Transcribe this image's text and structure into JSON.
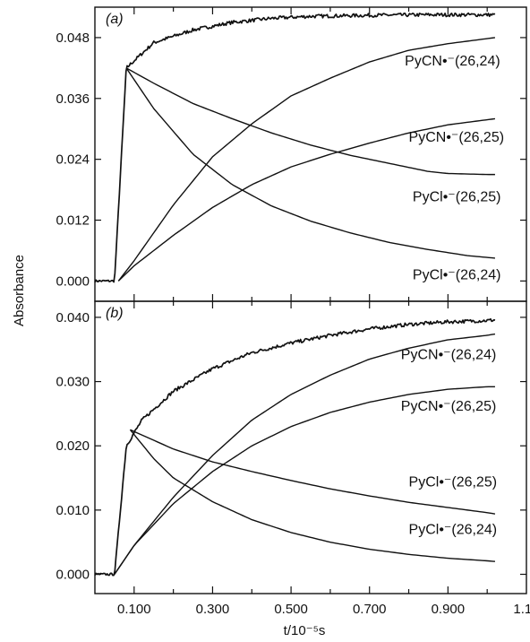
{
  "chart_data": [
    {
      "type": "line",
      "panel_label": "(a)",
      "ylabel": "Absorbance",
      "xlabel": "t/10⁻⁵s",
      "xlim": [
        0.0,
        1.1
      ],
      "ylim": [
        -0.004,
        0.054
      ],
      "yticks": [
        "0.000",
        "0.012",
        "0.024",
        "0.036",
        "0.048"
      ],
      "xticks": [],
      "series": [
        {
          "key": "total",
          "noisy": true,
          "x": [
            0.0,
            0.05,
            0.08,
            0.15,
            0.25,
            0.35,
            0.45,
            0.55,
            0.7,
            0.85,
            1.0,
            1.02
          ],
          "y": [
            0.0,
            0.0,
            0.042,
            0.047,
            0.0495,
            0.051,
            0.0518,
            0.0522,
            0.0524,
            0.0525,
            0.0525,
            0.0525
          ]
        },
        {
          "key": "pycn_26_24",
          "label": "PyCN•⁻(26,24)",
          "x": [
            0.06,
            0.1,
            0.2,
            0.3,
            0.4,
            0.5,
            0.6,
            0.7,
            0.8,
            0.9,
            1.0,
            1.02
          ],
          "y": [
            0.0,
            0.004,
            0.015,
            0.0245,
            0.031,
            0.0365,
            0.04,
            0.0432,
            0.0455,
            0.0468,
            0.0478,
            0.048
          ]
        },
        {
          "key": "pycn_26_25",
          "label": "PyCN•⁻(26,25)",
          "x": [
            0.06,
            0.1,
            0.2,
            0.3,
            0.4,
            0.5,
            0.6,
            0.7,
            0.8,
            0.9,
            1.0,
            1.02
          ],
          "y": [
            0.0,
            0.003,
            0.009,
            0.0145,
            0.019,
            0.0225,
            0.025,
            0.0272,
            0.0292,
            0.0308,
            0.0318,
            0.032
          ]
        },
        {
          "key": "pycl_26_25",
          "label": "PyCl•⁻(26,25)",
          "x": [
            0.08,
            0.15,
            0.25,
            0.35,
            0.45,
            0.55,
            0.65,
            0.75,
            0.85,
            0.9,
            1.0,
            1.02
          ],
          "y": [
            0.042,
            0.039,
            0.035,
            0.032,
            0.0292,
            0.0268,
            0.0248,
            0.0232,
            0.0216,
            0.0212,
            0.021,
            0.021
          ]
        },
        {
          "key": "pycl_26_24",
          "label": "PyCl•⁻(26,24)",
          "x": [
            0.08,
            0.15,
            0.25,
            0.35,
            0.45,
            0.55,
            0.65,
            0.75,
            0.85,
            0.95,
            1.02
          ],
          "y": [
            0.042,
            0.034,
            0.025,
            0.019,
            0.0148,
            0.0118,
            0.0095,
            0.0076,
            0.0062,
            0.005,
            0.0045
          ]
        }
      ],
      "curve_labels": [
        {
          "text": "PyCN•⁻(26,24)",
          "x": 0.79,
          "y": 0.0425
        },
        {
          "text": "PyCN•⁻(26,25)",
          "x": 0.8,
          "y": 0.0275
        },
        {
          "text": "PyCl•⁻(26,25)",
          "x": 0.81,
          "y": 0.0157
        },
        {
          "text": "PyCl•⁻(26,24)",
          "x": 0.81,
          "y": 0.0003
        }
      ]
    },
    {
      "type": "line",
      "panel_label": "(b)",
      "ylabel": "Absorbance",
      "xlabel": "t/10⁻⁵s",
      "xlim": [
        0.0,
        1.1
      ],
      "ylim": [
        -0.003,
        0.0425
      ],
      "yticks": [
        "0.000",
        "0.010",
        "0.020",
        "0.030",
        "0.040"
      ],
      "xticks": [
        "0.100",
        "0.300",
        "0.500",
        "0.700",
        "0.900",
        "1.10"
      ],
      "series": [
        {
          "key": "total",
          "noisy": true,
          "x": [
            0.0,
            0.05,
            0.08,
            0.12,
            0.2,
            0.3,
            0.4,
            0.5,
            0.6,
            0.7,
            0.8,
            0.9,
            1.0,
            1.02
          ],
          "y": [
            0.0,
            0.0,
            0.02,
            0.024,
            0.0285,
            0.032,
            0.0345,
            0.036,
            0.0372,
            0.0382,
            0.0389,
            0.0393,
            0.0395,
            0.0396
          ]
        },
        {
          "key": "pycn_26_24",
          "label": "PyCN•⁻(26,24)",
          "x": [
            0.05,
            0.1,
            0.2,
            0.3,
            0.4,
            0.5,
            0.6,
            0.7,
            0.8,
            0.9,
            1.0,
            1.02
          ],
          "y": [
            0.0,
            0.0045,
            0.012,
            0.0185,
            0.024,
            0.028,
            0.031,
            0.0335,
            0.0352,
            0.0365,
            0.0372,
            0.0374
          ]
        },
        {
          "key": "pycn_26_25",
          "label": "PyCN•⁻(26,25)",
          "x": [
            0.05,
            0.1,
            0.2,
            0.3,
            0.4,
            0.5,
            0.6,
            0.7,
            0.8,
            0.9,
            1.0,
            1.02
          ],
          "y": [
            0.0,
            0.0045,
            0.011,
            0.016,
            0.02,
            0.023,
            0.0252,
            0.0268,
            0.028,
            0.0288,
            0.0292,
            0.0292
          ]
        },
        {
          "key": "pycl_26_25",
          "label": "PyCl•⁻(26,25)",
          "x": [
            0.09,
            0.2,
            0.3,
            0.4,
            0.5,
            0.6,
            0.7,
            0.8,
            0.9,
            1.0,
            1.02
          ],
          "y": [
            0.0225,
            0.0195,
            0.0175,
            0.016,
            0.0146,
            0.0133,
            0.0122,
            0.0112,
            0.0104,
            0.0096,
            0.0094
          ]
        },
        {
          "key": "pycl_26_24",
          "label": "PyCl•⁻(26,24)",
          "x": [
            0.09,
            0.15,
            0.2,
            0.3,
            0.4,
            0.5,
            0.6,
            0.7,
            0.8,
            0.9,
            1.0,
            1.02
          ],
          "y": [
            0.0225,
            0.018,
            0.015,
            0.0113,
            0.0085,
            0.0065,
            0.005,
            0.0039,
            0.0031,
            0.0025,
            0.0021,
            0.002
          ]
        }
      ],
      "curve_labels": [
        {
          "text": "PyCN•⁻(26,24)",
          "x": 0.78,
          "y": 0.0335
        },
        {
          "text": "PyCN•⁻(26,25)",
          "x": 0.78,
          "y": 0.0255
        },
        {
          "text": "PyCl•⁻(26,25)",
          "x": 0.8,
          "y": 0.0137
        },
        {
          "text": "PyCl•⁻(26,24)",
          "x": 0.8,
          "y": 0.0063
        }
      ]
    }
  ]
}
